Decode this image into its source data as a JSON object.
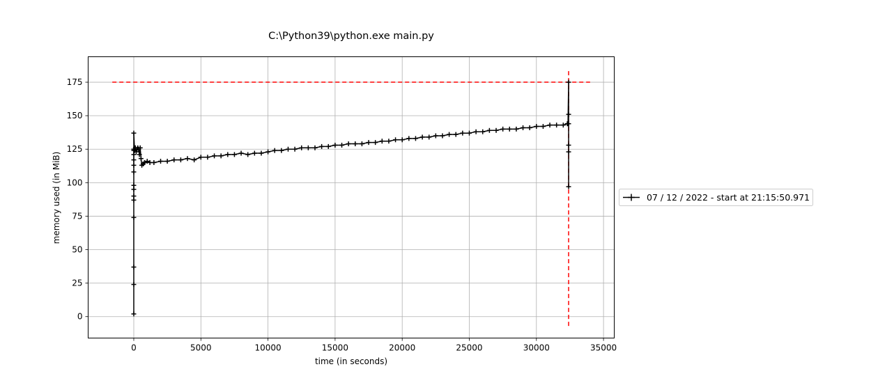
{
  "chart_data": {
    "type": "line",
    "title": "C:\\Python39\\python.exe main.py",
    "xlabel": "time (in seconds)",
    "ylabel": "memory used (in MiB)",
    "xlim": [
      -3400,
      35800
    ],
    "ylim": [
      -16,
      194
    ],
    "xticks": [
      0,
      5000,
      10000,
      15000,
      20000,
      25000,
      30000,
      35000
    ],
    "xtick_labels": [
      "0",
      "5000",
      "10000",
      "15000",
      "20000",
      "25000",
      "30000",
      "35000"
    ],
    "yticks": [
      0,
      25,
      50,
      75,
      100,
      125,
      150,
      175
    ],
    "ytick_labels": [
      "0",
      "25",
      "50",
      "75",
      "100",
      "125",
      "150",
      "175"
    ],
    "grid": true,
    "legend_position": "outside-right",
    "series": [
      {
        "name": "07 / 12 / 2022 - start at 21:15:50.971",
        "color": "#000000",
        "marker": "+",
        "x": [
          0,
          0,
          0,
          0,
          0,
          0,
          0,
          0,
          0,
          0,
          0,
          0,
          0,
          0,
          0,
          60,
          120,
          180,
          240,
          300,
          360,
          420,
          480,
          540,
          600,
          700,
          800,
          1000,
          1200,
          1500,
          2000,
          2500,
          3000,
          3500,
          4000,
          4500,
          5000,
          5500,
          6000,
          6500,
          7000,
          7500,
          8000,
          8500,
          9000,
          9500,
          10000,
          10500,
          11000,
          11500,
          12000,
          12500,
          13000,
          13500,
          14000,
          14500,
          15000,
          15500,
          16000,
          16500,
          17000,
          17500,
          18000,
          18500,
          19000,
          19500,
          20000,
          20500,
          21000,
          21500,
          22000,
          22500,
          23000,
          23500,
          24000,
          24500,
          25000,
          25500,
          26000,
          26500,
          27000,
          27500,
          28000,
          28500,
          29000,
          29500,
          30000,
          30500,
          31000,
          31500,
          32000,
          32300,
          32350,
          32400,
          32400,
          32400,
          32400,
          32400,
          32400
        ],
        "y": [
          2,
          24,
          37,
          74,
          87,
          90,
          95,
          98,
          108,
          113,
          117,
          121,
          124,
          125,
          137,
          124,
          126,
          123,
          125,
          126,
          125,
          121,
          126,
          118,
          113,
          114,
          115,
          116,
          115,
          115,
          116,
          116,
          117,
          117,
          118,
          117,
          119,
          119,
          120,
          120,
          121,
          121,
          122,
          121,
          122,
          122,
          123,
          124,
          124,
          125,
          125,
          126,
          126,
          126,
          127,
          127,
          128,
          128,
          129,
          129,
          129,
          130,
          130,
          131,
          131,
          132,
          132,
          133,
          133,
          134,
          134,
          135,
          135,
          136,
          136,
          137,
          137,
          138,
          138,
          139,
          139,
          140,
          140,
          140,
          141,
          141,
          142,
          142,
          143,
          143,
          143,
          144,
          144,
          175,
          151,
          97,
          123,
          128,
          144
        ]
      }
    ],
    "reference_lines": {
      "color": "#ff0000",
      "style": "dashed",
      "horizontal": {
        "y": 175,
        "x_from": -1600,
        "x_to": 34000
      },
      "vertical": {
        "x": 32400,
        "y_from": -7,
        "y_to": 184
      }
    }
  }
}
